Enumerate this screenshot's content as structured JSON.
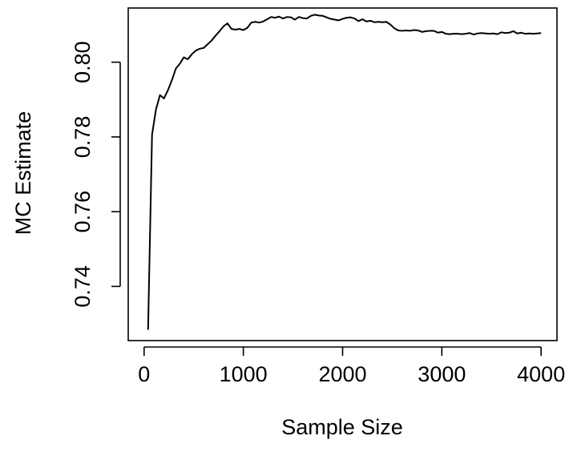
{
  "chart_data": {
    "type": "line",
    "title": "",
    "xlabel": "Sample Size",
    "ylabel": "MC Estimate",
    "xlim": [
      -160,
      4160
    ],
    "ylim": [
      0.7255,
      0.8145
    ],
    "x_ticks": [
      0,
      1000,
      2000,
      3000,
      4000
    ],
    "x_tick_labels": [
      "0",
      "1000",
      "2000",
      "3000",
      "4000"
    ],
    "y_ticks": [
      0.74,
      0.76,
      0.78,
      0.8
    ],
    "y_tick_labels": [
      "0.74",
      "0.76",
      "0.78",
      "0.80"
    ],
    "grid": false,
    "legend": "none",
    "series": [
      {
        "x": [
          40,
          80,
          120,
          160,
          200,
          240,
          280,
          320,
          360,
          400,
          440,
          480,
          520,
          560,
          600,
          640,
          680,
          720,
          760,
          800,
          840,
          880,
          920,
          960,
          1000,
          1040,
          1080,
          1120,
          1160,
          1200,
          1240,
          1280,
          1320,
          1360,
          1400,
          1440,
          1480,
          1520,
          1560,
          1600,
          1640,
          1680,
          1720,
          1760,
          1800,
          1840,
          1880,
          1920,
          1960,
          2000,
          2040,
          2080,
          2120,
          2160,
          2200,
          2240,
          2280,
          2320,
          2360,
          2400,
          2440,
          2480,
          2520,
          2560,
          2600,
          2640,
          2680,
          2720,
          2760,
          2800,
          2840,
          2880,
          2920,
          2960,
          3000,
          3040,
          3080,
          3120,
          3160,
          3200,
          3240,
          3280,
          3320,
          3360,
          3400,
          3440,
          3480,
          3520,
          3560,
          3600,
          3640,
          3680,
          3720,
          3760,
          3800,
          3840,
          3880,
          3920,
          3960,
          4000
        ],
        "values": [
          0.7284,
          0.7806,
          0.7874,
          0.7912,
          0.7903,
          0.7925,
          0.7952,
          0.7983,
          0.7996,
          0.8013,
          0.8008,
          0.8021,
          0.8031,
          0.8036,
          0.8038,
          0.8048,
          0.8058,
          0.8071,
          0.8083,
          0.8096,
          0.8104,
          0.8089,
          0.8087,
          0.8089,
          0.8086,
          0.8092,
          0.8106,
          0.8108,
          0.8106,
          0.8109,
          0.8115,
          0.8121,
          0.8119,
          0.8122,
          0.8117,
          0.8121,
          0.812,
          0.8114,
          0.8121,
          0.8118,
          0.8117,
          0.8124,
          0.8127,
          0.8125,
          0.8124,
          0.812,
          0.8116,
          0.8114,
          0.8112,
          0.8116,
          0.8119,
          0.812,
          0.8117,
          0.811,
          0.8115,
          0.8109,
          0.8111,
          0.8107,
          0.8108,
          0.8107,
          0.8108,
          0.8101,
          0.8091,
          0.8085,
          0.8084,
          0.8085,
          0.8084,
          0.8086,
          0.8085,
          0.8081,
          0.8083,
          0.8084,
          0.8084,
          0.8079,
          0.8081,
          0.8076,
          0.8075,
          0.8076,
          0.8076,
          0.8075,
          0.8076,
          0.8078,
          0.8074,
          0.8077,
          0.8078,
          0.8077,
          0.8076,
          0.8077,
          0.8075,
          0.808,
          0.8078,
          0.8079,
          0.8083,
          0.8077,
          0.8079,
          0.8076,
          0.8077,
          0.8076,
          0.8077,
          0.8078
        ]
      }
    ]
  }
}
